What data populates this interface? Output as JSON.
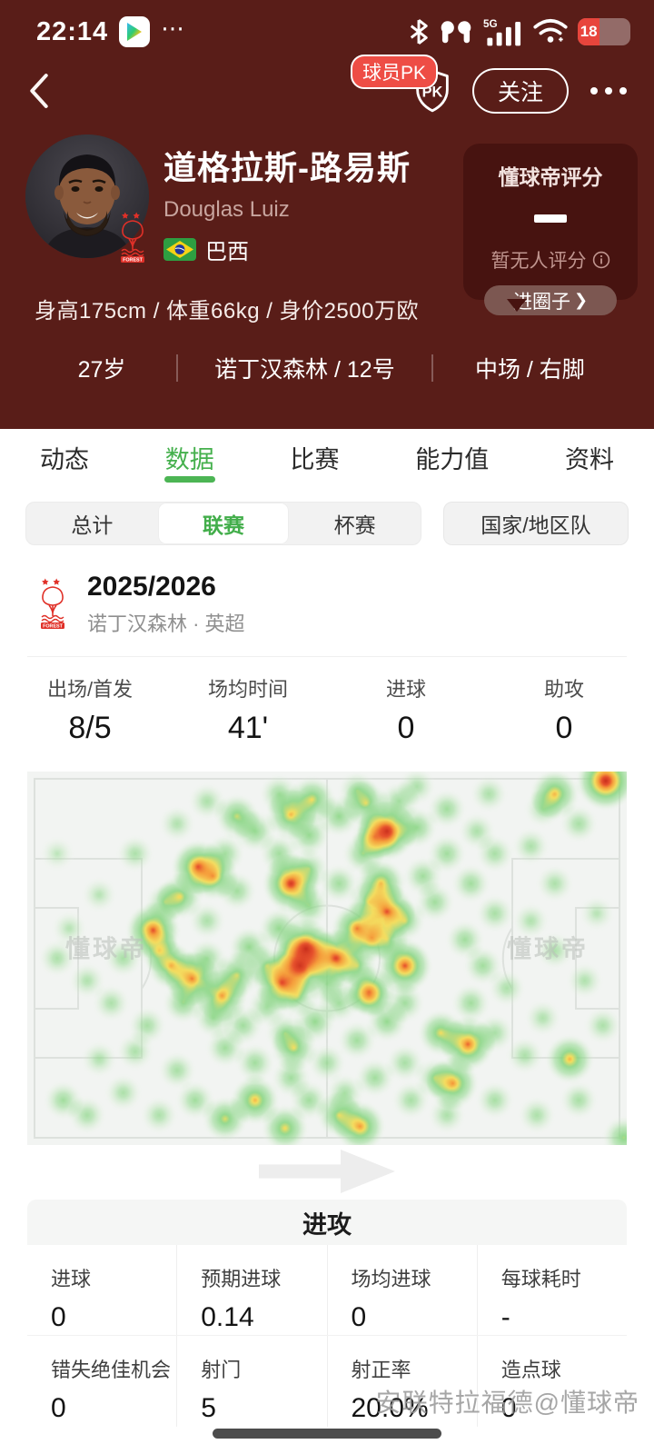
{
  "colors": {
    "hero_bg": "#591d18",
    "card_bg": "#471310",
    "accent_green": "#45b04d",
    "badge_red": "#ee4d45",
    "crest_red": "#e03028",
    "battery_red": "#e8453c"
  },
  "status_bar": {
    "time": "22:14",
    "battery_percent": "18",
    "network": "5G"
  },
  "header": {
    "pk_tooltip": "球员PK",
    "pk_shield": "PK",
    "follow_label": "关注"
  },
  "player": {
    "name": "道格拉斯-路易斯",
    "name_en": "Douglas Luiz",
    "nation": "巴西",
    "physical": "身高175cm / 体重66kg / 身价2500万欧",
    "age": "27岁",
    "club_number": "诺丁汉森林 / 12号",
    "position_foot": "中场 / 右脚"
  },
  "rating": {
    "title": "懂球帝评分",
    "value": "-",
    "empty_label": "暂无人评分",
    "circle_label": "进圈子",
    "chevron": "❯"
  },
  "tabs": {
    "items": [
      "动态",
      "数据",
      "比赛",
      "能力值",
      "资料"
    ],
    "active": "数据"
  },
  "filters": {
    "segments": [
      "总计",
      "联赛",
      "杯赛"
    ],
    "active": "联赛",
    "national_label": "国家/地区队"
  },
  "season": {
    "year": "2025/2026",
    "club_league": "诺丁汉森林 · 英超"
  },
  "summary": {
    "items": [
      {
        "label": "出场/首发",
        "value": "8/5"
      },
      {
        "label": "场均时间",
        "value": "41'"
      },
      {
        "label": "进球",
        "value": "0"
      },
      {
        "label": "助攻",
        "value": "0"
      }
    ]
  },
  "heatmap": {
    "watermark": "懂球帝",
    "points": [
      [
        0.965,
        0.025,
        1.0
      ],
      [
        0.88,
        0.06,
        0.72
      ],
      [
        0.6,
        0.16,
        0.98
      ],
      [
        0.565,
        0.085,
        0.6
      ],
      [
        0.475,
        0.075,
        0.65
      ],
      [
        0.44,
        0.115,
        0.72
      ],
      [
        0.35,
        0.12,
        0.6
      ],
      [
        0.285,
        0.255,
        0.85
      ],
      [
        0.31,
        0.28,
        0.7
      ],
      [
        0.44,
        0.3,
        0.95
      ],
      [
        0.59,
        0.3,
        0.72
      ],
      [
        0.6,
        0.375,
        0.88
      ],
      [
        0.255,
        0.335,
        0.62
      ],
      [
        0.465,
        0.475,
        1.0
      ],
      [
        0.455,
        0.52,
        0.95
      ],
      [
        0.515,
        0.5,
        0.92
      ],
      [
        0.55,
        0.42,
        0.78
      ],
      [
        0.575,
        0.445,
        0.65
      ],
      [
        0.21,
        0.425,
        0.88
      ],
      [
        0.63,
        0.52,
        0.88
      ],
      [
        0.57,
        0.59,
        0.74
      ],
      [
        0.24,
        0.52,
        0.7
      ],
      [
        0.275,
        0.555,
        0.82
      ],
      [
        0.325,
        0.6,
        0.78
      ],
      [
        0.425,
        0.565,
        0.88
      ],
      [
        0.35,
        0.545,
        0.6
      ],
      [
        0.735,
        0.73,
        0.85
      ],
      [
        0.69,
        0.7,
        0.65
      ],
      [
        0.71,
        0.835,
        0.78
      ],
      [
        0.905,
        0.77,
        0.72
      ],
      [
        0.445,
        0.74,
        0.62
      ],
      [
        0.38,
        0.88,
        0.72
      ],
      [
        0.555,
        0.95,
        0.78
      ],
      [
        0.52,
        0.92,
        0.6
      ],
      [
        0.58,
        0.175,
        0.6
      ],
      [
        0.995,
        0.98,
        0.55
      ],
      [
        0.33,
        0.93,
        0.62
      ],
      [
        0.43,
        0.955,
        0.66
      ],
      [
        0.05,
        0.5,
        0.4
      ],
      [
        0.07,
        0.42,
        0.35
      ],
      [
        0.1,
        0.56,
        0.38
      ],
      [
        0.12,
        0.33,
        0.35
      ],
      [
        0.18,
        0.22,
        0.4
      ],
      [
        0.16,
        0.5,
        0.42
      ],
      [
        0.14,
        0.62,
        0.4
      ],
      [
        0.2,
        0.68,
        0.42
      ],
      [
        0.12,
        0.77,
        0.38
      ],
      [
        0.06,
        0.88,
        0.45
      ],
      [
        0.1,
        0.92,
        0.42
      ],
      [
        0.16,
        0.86,
        0.4
      ],
      [
        0.05,
        0.22,
        0.32
      ],
      [
        0.23,
        0.35,
        0.45
      ],
      [
        0.22,
        0.48,
        0.5
      ],
      [
        0.26,
        0.62,
        0.5
      ],
      [
        0.3,
        0.5,
        0.45
      ],
      [
        0.3,
        0.4,
        0.4
      ],
      [
        0.35,
        0.32,
        0.45
      ],
      [
        0.33,
        0.22,
        0.45
      ],
      [
        0.38,
        0.16,
        0.5
      ],
      [
        0.42,
        0.22,
        0.45
      ],
      [
        0.47,
        0.17,
        0.5
      ],
      [
        0.52,
        0.12,
        0.5
      ],
      [
        0.47,
        0.26,
        0.45
      ],
      [
        0.52,
        0.3,
        0.45
      ],
      [
        0.56,
        0.22,
        0.5
      ],
      [
        0.47,
        0.36,
        0.5
      ],
      [
        0.42,
        0.42,
        0.5
      ],
      [
        0.37,
        0.47,
        0.5
      ],
      [
        0.4,
        0.52,
        0.5
      ],
      [
        0.45,
        0.6,
        0.5
      ],
      [
        0.5,
        0.57,
        0.45
      ],
      [
        0.55,
        0.52,
        0.5
      ],
      [
        0.52,
        0.62,
        0.45
      ],
      [
        0.48,
        0.67,
        0.5
      ],
      [
        0.43,
        0.7,
        0.45
      ],
      [
        0.4,
        0.63,
        0.45
      ],
      [
        0.36,
        0.68,
        0.45
      ],
      [
        0.33,
        0.74,
        0.45
      ],
      [
        0.38,
        0.78,
        0.45
      ],
      [
        0.44,
        0.82,
        0.45
      ],
      [
        0.5,
        0.78,
        0.42
      ],
      [
        0.55,
        0.72,
        0.45
      ],
      [
        0.6,
        0.67,
        0.5
      ],
      [
        0.63,
        0.62,
        0.45
      ],
      [
        0.6,
        0.45,
        0.5
      ],
      [
        0.63,
        0.4,
        0.5
      ],
      [
        0.68,
        0.35,
        0.45
      ],
      [
        0.66,
        0.28,
        0.45
      ],
      [
        0.7,
        0.22,
        0.45
      ],
      [
        0.65,
        0.15,
        0.5
      ],
      [
        0.7,
        0.1,
        0.45
      ],
      [
        0.75,
        0.16,
        0.4
      ],
      [
        0.78,
        0.22,
        0.42
      ],
      [
        0.74,
        0.3,
        0.45
      ],
      [
        0.78,
        0.38,
        0.42
      ],
      [
        0.73,
        0.45,
        0.45
      ],
      [
        0.76,
        0.52,
        0.45
      ],
      [
        0.8,
        0.58,
        0.4
      ],
      [
        0.74,
        0.62,
        0.45
      ],
      [
        0.78,
        0.7,
        0.42
      ],
      [
        0.83,
        0.76,
        0.4
      ],
      [
        0.86,
        0.66,
        0.38
      ],
      [
        0.88,
        0.48,
        0.4
      ],
      [
        0.84,
        0.4,
        0.38
      ],
      [
        0.88,
        0.3,
        0.4
      ],
      [
        0.84,
        0.2,
        0.4
      ],
      [
        0.92,
        0.14,
        0.42
      ],
      [
        0.95,
        0.38,
        0.35
      ],
      [
        0.93,
        0.56,
        0.38
      ],
      [
        0.96,
        0.68,
        0.4
      ],
      [
        0.92,
        0.88,
        0.42
      ],
      [
        0.85,
        0.92,
        0.4
      ],
      [
        0.78,
        0.88,
        0.42
      ],
      [
        0.7,
        0.92,
        0.4
      ],
      [
        0.64,
        0.88,
        0.42
      ],
      [
        0.58,
        0.82,
        0.45
      ],
      [
        0.63,
        0.78,
        0.42
      ],
      [
        0.68,
        0.82,
        0.45
      ],
      [
        0.25,
        0.8,
        0.42
      ],
      [
        0.28,
        0.88,
        0.45
      ],
      [
        0.22,
        0.92,
        0.4
      ],
      [
        0.57,
        0.6,
        0.45
      ],
      [
        0.57,
        0.35,
        0.5
      ],
      [
        0.62,
        0.08,
        0.45
      ],
      [
        0.77,
        0.06,
        0.4
      ],
      [
        0.86,
        0.1,
        0.4
      ],
      [
        0.3,
        0.08,
        0.4
      ],
      [
        0.25,
        0.14,
        0.38
      ],
      [
        0.42,
        0.06,
        0.45
      ],
      [
        0.55,
        0.05,
        0.42
      ],
      [
        0.65,
        0.04,
        0.4
      ],
      [
        0.31,
        0.66,
        0.45
      ],
      [
        0.18,
        0.75,
        0.4
      ],
      [
        0.47,
        0.88,
        0.45
      ],
      [
        0.53,
        0.86,
        0.42
      ]
    ]
  },
  "attack": {
    "title": "进攻",
    "rows": [
      [
        {
          "label": "进球",
          "value": "0"
        },
        {
          "label": "预期进球",
          "value": "0.14"
        },
        {
          "label": "场均进球",
          "value": "0"
        },
        {
          "label": "每球耗时",
          "value": "-"
        }
      ],
      [
        {
          "label": "错失绝佳机会",
          "value": "0"
        },
        {
          "label": "射门",
          "value": "5"
        },
        {
          "label": "射正率",
          "value": "20.0%"
        },
        {
          "label": "造点球",
          "value": "0"
        }
      ]
    ]
  },
  "footer": {
    "watermark": "安联特拉福德@懂球帝"
  }
}
